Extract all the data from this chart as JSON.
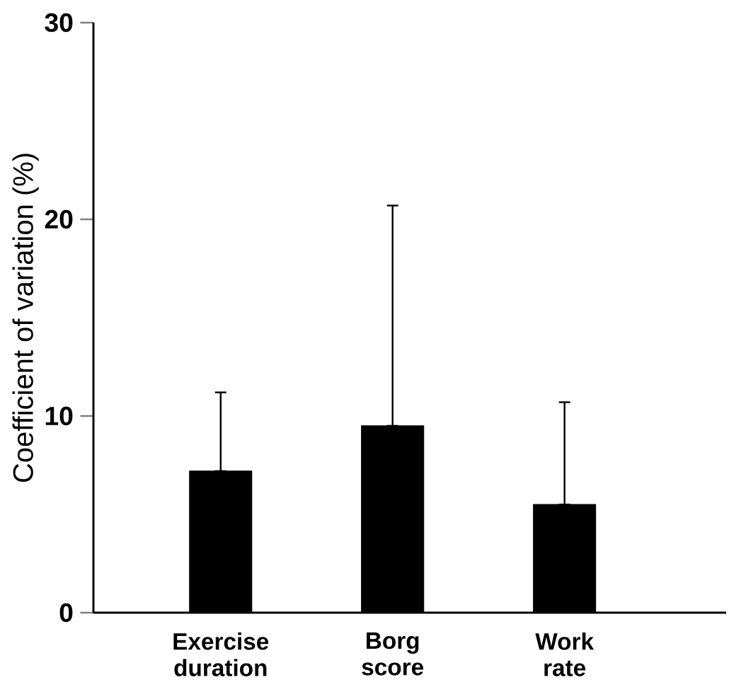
{
  "chart_data": {
    "type": "bar",
    "ylabel": "Coefficient of variation (%)",
    "categories": [
      "Exercise duration",
      "Borg score",
      "Work rate"
    ],
    "values": [
      7.2,
      9.5,
      5.5
    ],
    "errors": [
      [
        7.2,
        11.2
      ],
      [
        9.5,
        20.7
      ],
      [
        5.5,
        10.7
      ]
    ],
    "color": "#000000",
    "ylim": [
      0,
      30
    ],
    "yticks": [
      0,
      10,
      20,
      30
    ]
  }
}
